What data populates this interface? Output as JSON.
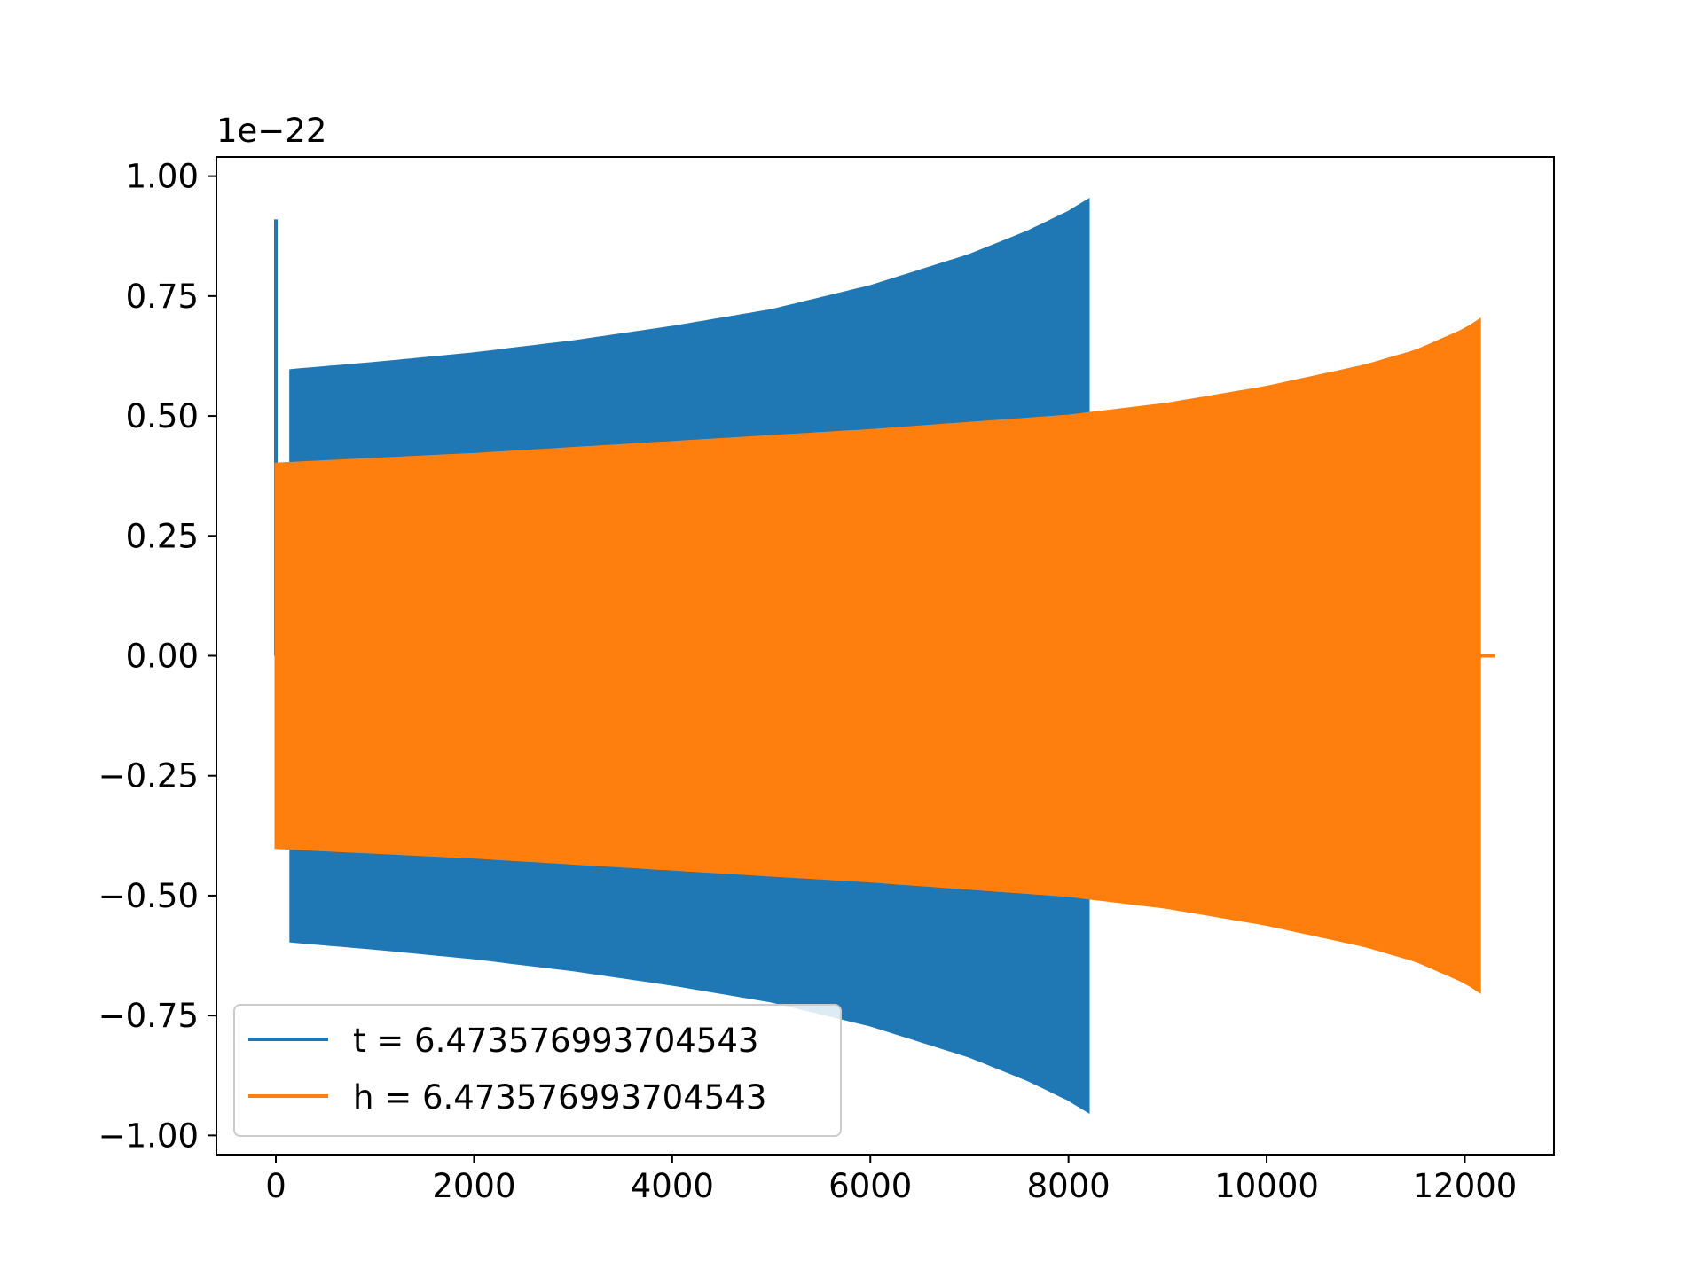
{
  "chart_data": {
    "type": "line",
    "title": "",
    "xlabel": "",
    "ylabel": "",
    "y_scale_label": "1e−22",
    "xlim": [
      -600,
      12900
    ],
    "ylim": [
      -1.04,
      1.04
    ],
    "x_ticks": [
      0,
      2000,
      4000,
      6000,
      8000,
      10000,
      12000
    ],
    "x_tick_labels": [
      "0",
      "2000",
      "4000",
      "6000",
      "8000",
      "10000",
      "12000"
    ],
    "y_ticks": [
      1.0,
      0.75,
      0.5,
      0.25,
      0.0,
      -0.25,
      -0.5,
      -0.75,
      -1.0
    ],
    "y_tick_labels": [
      "1.00",
      "0.75",
      "0.50",
      "0.25",
      "0.00",
      "−0.25",
      "−0.50",
      "−0.75",
      "−1.00"
    ],
    "grid": false,
    "legend_position": "lower-left",
    "series": [
      {
        "name": "t = 6.473576993704543",
        "color": "#1f77b4",
        "spike": {
          "x": 0,
          "ymax": 0.91,
          "ymin": 0.0
        },
        "start_x": 150,
        "end_x": 8200,
        "envelope": [
          {
            "x": 150,
            "amp": 0.595
          },
          {
            "x": 1000,
            "amp": 0.61
          },
          {
            "x": 2000,
            "amp": 0.63
          },
          {
            "x": 3000,
            "amp": 0.655
          },
          {
            "x": 4000,
            "amp": 0.685
          },
          {
            "x": 5000,
            "amp": 0.72
          },
          {
            "x": 6000,
            "amp": 0.77
          },
          {
            "x": 7000,
            "amp": 0.835
          },
          {
            "x": 7600,
            "amp": 0.885
          },
          {
            "x": 8000,
            "amp": 0.925
          },
          {
            "x": 8200,
            "amp": 0.95
          }
        ]
      },
      {
        "name": "h = 6.473576993704543",
        "color": "#ff7f0e",
        "start_x": 0,
        "end_x": 12150,
        "tail": {
          "x_start": 12150,
          "x_end": 12300,
          "y": 0.0
        },
        "envelope": [
          {
            "x": 0,
            "amp": 0.4
          },
          {
            "x": 2000,
            "amp": 0.42
          },
          {
            "x": 4000,
            "amp": 0.445
          },
          {
            "x": 6000,
            "amp": 0.47
          },
          {
            "x": 8000,
            "amp": 0.5
          },
          {
            "x": 9000,
            "amp": 0.525
          },
          {
            "x": 10000,
            "amp": 0.56
          },
          {
            "x": 11000,
            "amp": 0.605
          },
          {
            "x": 11500,
            "amp": 0.635
          },
          {
            "x": 12000,
            "amp": 0.68
          },
          {
            "x": 12150,
            "amp": 0.7
          }
        ]
      }
    ]
  }
}
